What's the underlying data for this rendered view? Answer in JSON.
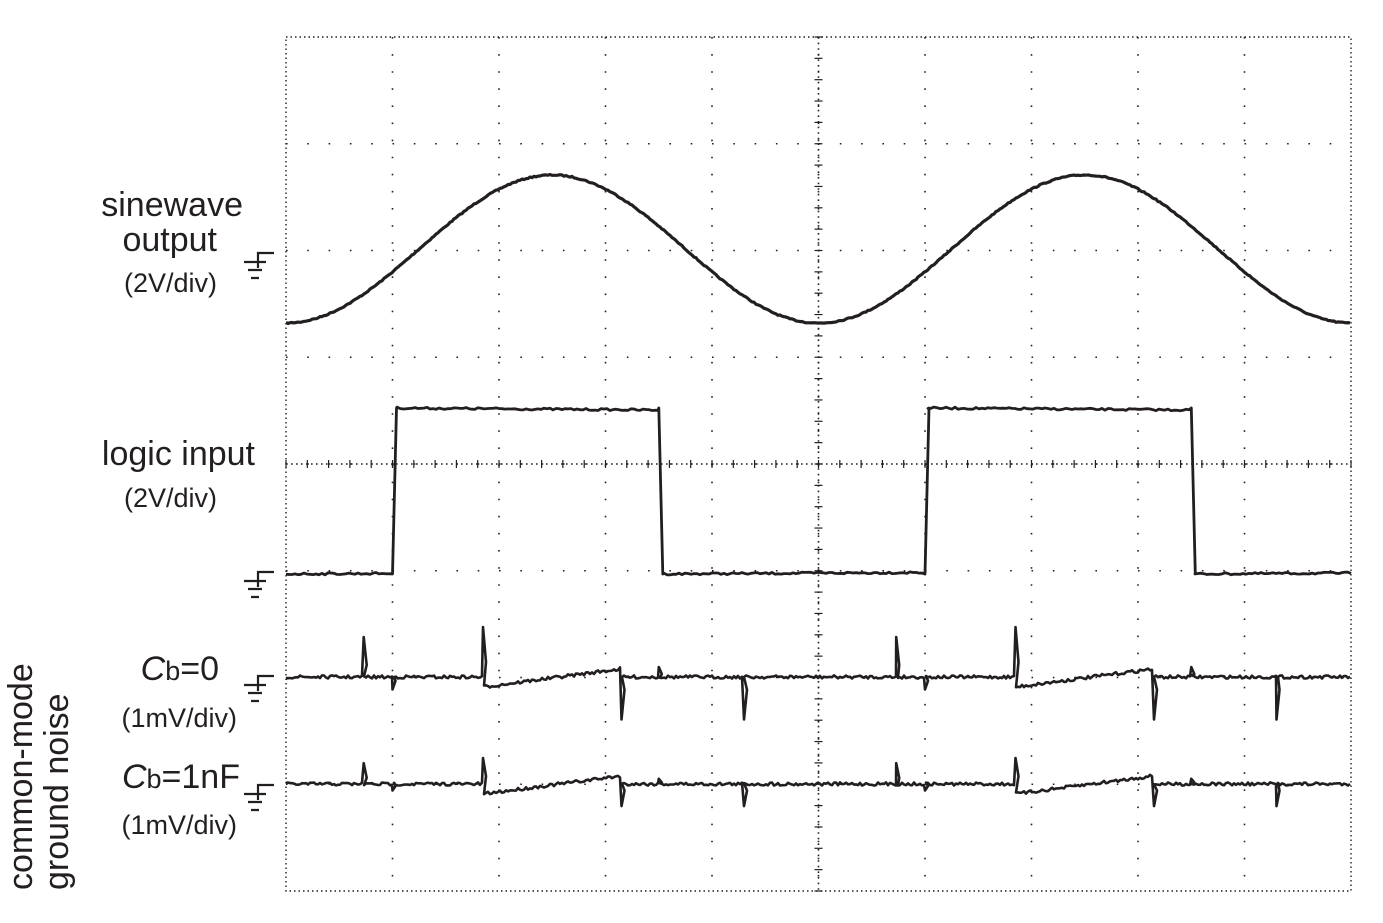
{
  "chart_data": {
    "type": "line",
    "title": "",
    "xlabel": "",
    "ylabel": "",
    "grid": true,
    "divisions": {
      "x": 10,
      "y": 8,
      "minor_per_div": 5
    },
    "traces": [
      {
        "name": "sinewave output",
        "label_lines": [
          "sinewave",
          "output"
        ],
        "scale": "(2V/div)",
        "kind": "sine",
        "cycles_visible": 2,
        "amplitude_div": 0.7,
        "offset_div": 0.25,
        "phase": "starts at minimum"
      },
      {
        "name": "logic input",
        "label_lines": [
          "logic input"
        ],
        "scale": "(2V/div)",
        "kind": "square",
        "high_div": 1.55,
        "transitions_x_div": [
          1.0,
          3.5,
          6.0,
          8.5
        ]
      },
      {
        "name": "Cb=0",
        "label_prefix": "C",
        "label_sub": "b",
        "label_suffix": "=0",
        "scale": "(1mV/div)",
        "kind": "noise",
        "spike_height": "large"
      },
      {
        "name": "Cb=1nF",
        "label_prefix": "C",
        "label_sub": "b",
        "label_suffix": "=1nF",
        "scale": "(1mV/div)",
        "kind": "noise",
        "spike_height": "small"
      }
    ],
    "group_label": [
      "common-mode",
      "ground noise"
    ],
    "colors": {
      "trace": "#231f20",
      "grid": "#231f20",
      "background": "#ffffff"
    }
  }
}
